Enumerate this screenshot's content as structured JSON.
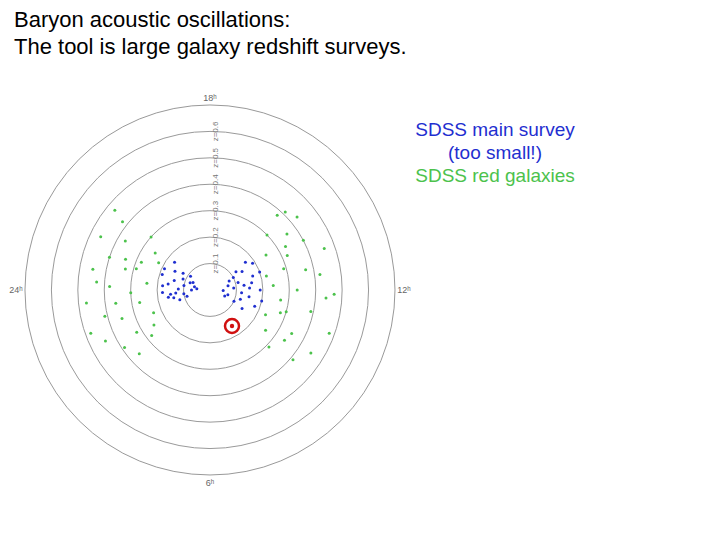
{
  "chart_data": {
    "type": "polar",
    "title": "Baryon acoustic oscillations:",
    "subtitle": "The tool is large galaxy redshift surveys.",
    "grid": true,
    "xlim": [
      0,
      360
    ],
    "xticks": [
      {
        "value": 0,
        "label": "24ʰ"
      },
      {
        "value": 90,
        "label": "6ʰ"
      },
      {
        "value": 180,
        "label": "12ʰ"
      },
      {
        "value": 270,
        "label": "18ʰ"
      }
    ],
    "ylim": [
      0,
      0.7
    ],
    "yticks": [
      {
        "value": 0.1,
        "label": "z=0.1"
      },
      {
        "value": 0.2,
        "label": "z=0.2"
      },
      {
        "value": 0.3,
        "label": "z=0.3"
      },
      {
        "value": 0.4,
        "label": "z=0.4"
      },
      {
        "value": 0.5,
        "label": "z=0.5"
      },
      {
        "value": 0.6,
        "label": "z=0.6"
      }
    ],
    "annotations": [
      {
        "text": "(too small!)",
        "series": "SDSS main survey"
      }
    ],
    "series": [
      {
        "name": "SDSS main survey",
        "color": "#1f2fd0",
        "marker": "circle",
        "x": [
          322,
          328,
          335,
          340,
          345,
          350,
          355,
          0,
          5,
          10,
          15,
          18,
          325,
          332,
          338,
          348,
          352,
          358,
          3,
          8,
          12,
          342,
          336,
          355,
          6,
          150,
          155,
          160,
          165,
          170,
          175,
          180,
          185,
          190,
          195,
          200,
          205,
          210,
          215,
          218,
          158,
          168,
          178,
          188,
          198,
          208,
          163,
          183,
          193,
          212
        ],
        "values": [
          0.17,
          0.12,
          0.19,
          0.08,
          0.14,
          0.1,
          0.18,
          0.07,
          0.13,
          0.16,
          0.09,
          0.12,
          0.09,
          0.15,
          0.11,
          0.06,
          0.16,
          0.12,
          0.18,
          0.1,
          0.14,
          0.19,
          0.07,
          0.05,
          0.15,
          0.14,
          0.1,
          0.18,
          0.07,
          0.15,
          0.12,
          0.19,
          0.09,
          0.16,
          0.11,
          0.2,
          0.08,
          0.14,
          0.12,
          0.17,
          0.06,
          0.2,
          0.05,
          0.13,
          0.17,
          0.1,
          0.12,
          0.15,
          0.07,
          0.19
        ]
      },
      {
        "name": "SDSS red galaxies",
        "color": "#4cc24c",
        "marker": "circle",
        "x": [
          318,
          322,
          326,
          330,
          334,
          338,
          342,
          346,
          350,
          354,
          358,
          2,
          6,
          10,
          14,
          18,
          22,
          26,
          30,
          34,
          38,
          42,
          320,
          332,
          344,
          356,
          8,
          20,
          32,
          340,
          136,
          140,
          144,
          148,
          152,
          156,
          160,
          164,
          168,
          172,
          176,
          180,
          184,
          188,
          192,
          196,
          200,
          204,
          208,
          212,
          216,
          220,
          224,
          228,
          146,
          162,
          178,
          194,
          210,
          226
        ],
        "values": [
          0.3,
          0.42,
          0.25,
          0.37,
          0.46,
          0.28,
          0.4,
          0.33,
          0.45,
          0.24,
          0.38,
          0.3,
          0.47,
          0.27,
          0.41,
          0.35,
          0.23,
          0.44,
          0.32,
          0.39,
          0.28,
          0.36,
          0.47,
          0.22,
          0.29,
          0.43,
          0.36,
          0.48,
          0.25,
          0.34,
          0.31,
          0.41,
          0.26,
          0.45,
          0.35,
          0.23,
          0.48,
          0.3,
          0.39,
          0.27,
          0.44,
          0.33,
          0.24,
          0.42,
          0.37,
          0.29,
          0.46,
          0.32,
          0.4,
          0.25,
          0.36,
          0.43,
          0.3,
          0.38,
          0.34,
          0.28,
          0.47,
          0.22,
          0.33,
          0.41
        ]
      }
    ]
  }
}
